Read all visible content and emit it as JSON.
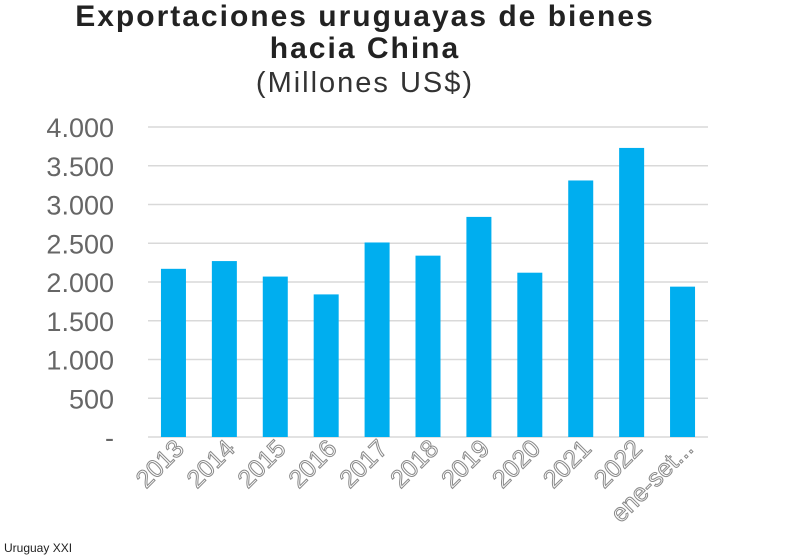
{
  "chart_data": {
    "type": "bar",
    "title": "Exportaciones uruguayas de bienes hacia China",
    "title_line1": "Exportaciones uruguayas de bienes",
    "title_line2": "hacia China",
    "subtitle": "(Millones US$)",
    "xlabel": "",
    "ylabel": "",
    "categories": [
      "2013",
      "2014",
      "2015",
      "2016",
      "2017",
      "2018",
      "2019",
      "2020",
      "2021",
      "2022",
      "ene-set..."
    ],
    "values": [
      2170,
      2270,
      2070,
      1840,
      2510,
      2340,
      2840,
      2120,
      3310,
      3730,
      1940
    ],
    "ylim": [
      0,
      4000
    ],
    "yticks": [
      0,
      500,
      1000,
      1500,
      2000,
      2500,
      3000,
      3500,
      4000
    ],
    "ytick_labels": [
      "-",
      "500",
      "1.000",
      "1.500",
      "2.000",
      "2.500",
      "3.000",
      "3.500",
      "4.000"
    ],
    "grid": true,
    "bar_color": "#00AEEF",
    "source": "Uruguay XXI"
  }
}
